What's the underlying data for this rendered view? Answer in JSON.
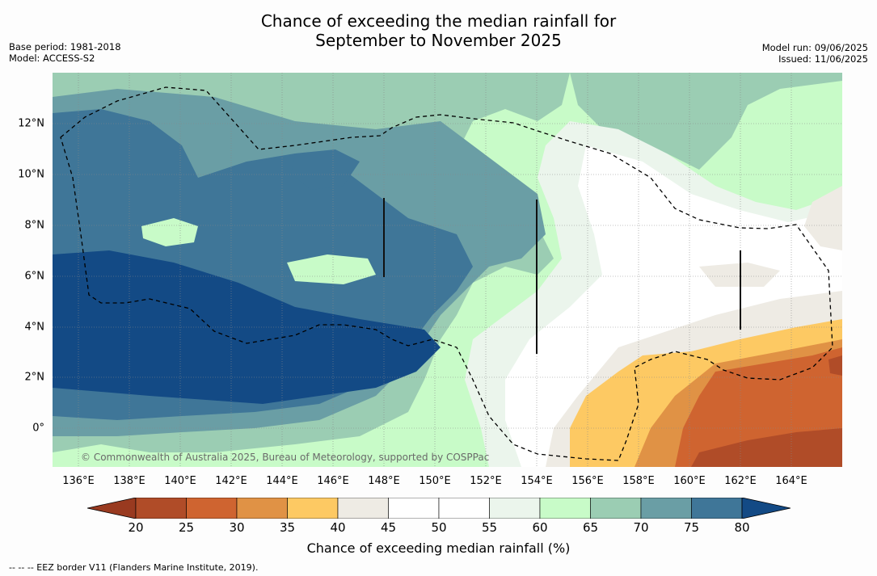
{
  "title": {
    "line1": "Chance of exceeding the median rainfall for",
    "line2": "September to November 2025"
  },
  "meta": {
    "base_period": "Base period: 1981-2018",
    "model": "Model: ACCESS-S2",
    "model_run": "Model run: 09/06/2025",
    "issued": "Issued: 11/06/2025"
  },
  "map": {
    "lat_labels": [
      "12°N",
      "10°N",
      "8°N",
      "6°N",
      "4°N",
      "2°N",
      "0°"
    ],
    "lon_labels": [
      "136°E",
      "138°E",
      "140°E",
      "142°E",
      "144°E",
      "146°E",
      "148°E",
      "150°E",
      "152°E",
      "154°E",
      "156°E",
      "158°E",
      "160°E",
      "162°E",
      "164°E"
    ],
    "watermark": "© Commonwealth of Australia 2025, Bureau of Meteorology, supported by COSPPac",
    "colors": {
      "very_wet": "#134a85",
      "wet_75": "#3f7698",
      "wet_70": "#6a9ea5",
      "wet_65": "#9bcdb3",
      "wet_60": "#c8fbc8",
      "neutral_55": "#ebf5ec",
      "neutral_50": "#ffffff",
      "dry_40": "#eeebe4",
      "dry_35": "#fdc963",
      "dry_30": "#e09245",
      "dry_25": "#cf6430",
      "very_dry": "#b04c28"
    }
  },
  "colorbar": {
    "ticks": [
      "20",
      "25",
      "30",
      "35",
      "40",
      "45",
      "50",
      "55",
      "60",
      "65",
      "70",
      "75",
      "80"
    ],
    "colors": [
      "#b04c28",
      "#cf6430",
      "#e09245",
      "#fdc963",
      "#eeebe4",
      "#ffffff",
      "#ffffff",
      "#ebf5ec",
      "#c8fbc8",
      "#9bcdb3",
      "#6a9ea5",
      "#3f7698"
    ],
    "low_extend_color": "#993a20",
    "high_extend_color": "#134a85",
    "label": "Chance of exceeding median rainfall (%)"
  },
  "footer": "--  --  -- EEZ border V11 (Flanders Marine Institute, 2019)."
}
